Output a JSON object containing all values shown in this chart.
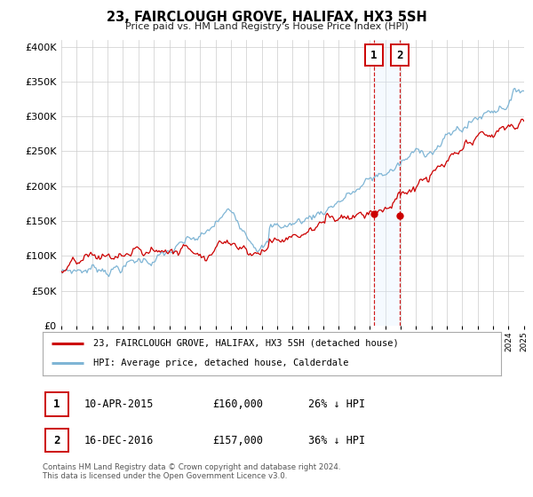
{
  "title": "23, FAIRCLOUGH GROVE, HALIFAX, HX3 5SH",
  "subtitle": "Price paid vs. HM Land Registry's House Price Index (HPI)",
  "legend_line1": "23, FAIRCLOUGH GROVE, HALIFAX, HX3 5SH (detached house)",
  "legend_line2": "HPI: Average price, detached house, Calderdale",
  "annotation1_date": "10-APR-2015",
  "annotation1_price": 160000,
  "annotation1_pct": "26% ↓ HPI",
  "annotation2_date": "16-DEC-2016",
  "annotation2_price": 157000,
  "annotation2_pct": "36% ↓ HPI",
  "sale1_year": 2015.27,
  "sale2_year": 2016.96,
  "footnote_line1": "Contains HM Land Registry data © Crown copyright and database right 2024.",
  "footnote_line2": "This data is licensed under the Open Government Licence v3.0.",
  "ylim_max": 410000,
  "xlim_start": 1995,
  "xlim_end": 2025,
  "red_color": "#cc0000",
  "blue_color": "#7fb5d5",
  "shade_color": "#ddeeff",
  "grid_color": "#cccccc",
  "bg_color": "#ffffff"
}
